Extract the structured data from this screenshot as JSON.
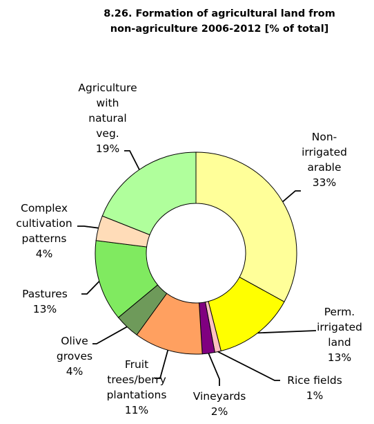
{
  "chart_data": {
    "type": "pie",
    "title": "8.26. Formation of agricultural land from non-agriculture 2006-2012 [% of total]",
    "title_lines": [
      "8.26. Formation of agricultural land from",
      "non-agriculture 2006-2012 [% of total]"
    ],
    "donut": true,
    "legend": "none",
    "slices": [
      {
        "name": "Non-irrigated arable",
        "label_lines": [
          "Non-",
          "irrigated",
          "arable"
        ],
        "value": 33,
        "value_label": "33%",
        "color": "#ffff99"
      },
      {
        "name": "Perm. irrigated land",
        "label_lines": [
          "Perm.",
          "irrigated",
          "land"
        ],
        "value": 13,
        "value_label": "13%",
        "color": "#ffff00"
      },
      {
        "name": "Rice fields",
        "label_lines": [
          "Rice fields"
        ],
        "value": 1,
        "value_label": "1%",
        "color": "#ffc0c0"
      },
      {
        "name": "Vineyards",
        "label_lines": [
          "Vineyards"
        ],
        "value": 2,
        "value_label": "2%",
        "color": "#800080"
      },
      {
        "name": "Fruit trees/berry plantations",
        "label_lines": [
          "Fruit",
          "trees/berry",
          "plantations"
        ],
        "value": 11,
        "value_label": "11%",
        "color": "#ffa060"
      },
      {
        "name": "Olive groves",
        "label_lines": [
          "Olive",
          "groves"
        ],
        "value": 4,
        "value_label": "4%",
        "color": "#6e9a5a"
      },
      {
        "name": "Pastures",
        "label_lines": [
          "Pastures"
        ],
        "value": 13,
        "value_label": "13%",
        "color": "#80ea60"
      },
      {
        "name": "Complex cultivation patterns",
        "label_lines": [
          "Complex",
          "cultivation",
          "patterns"
        ],
        "value": 4,
        "value_label": "4%",
        "color": "#ffdcb8"
      },
      {
        "name": "Agriculture with natural veg.",
        "label_lines": [
          "Agriculture",
          "with",
          "natural",
          "veg."
        ],
        "value": 19,
        "value_label": "19%",
        "color": "#b0ff9c"
      }
    ]
  }
}
